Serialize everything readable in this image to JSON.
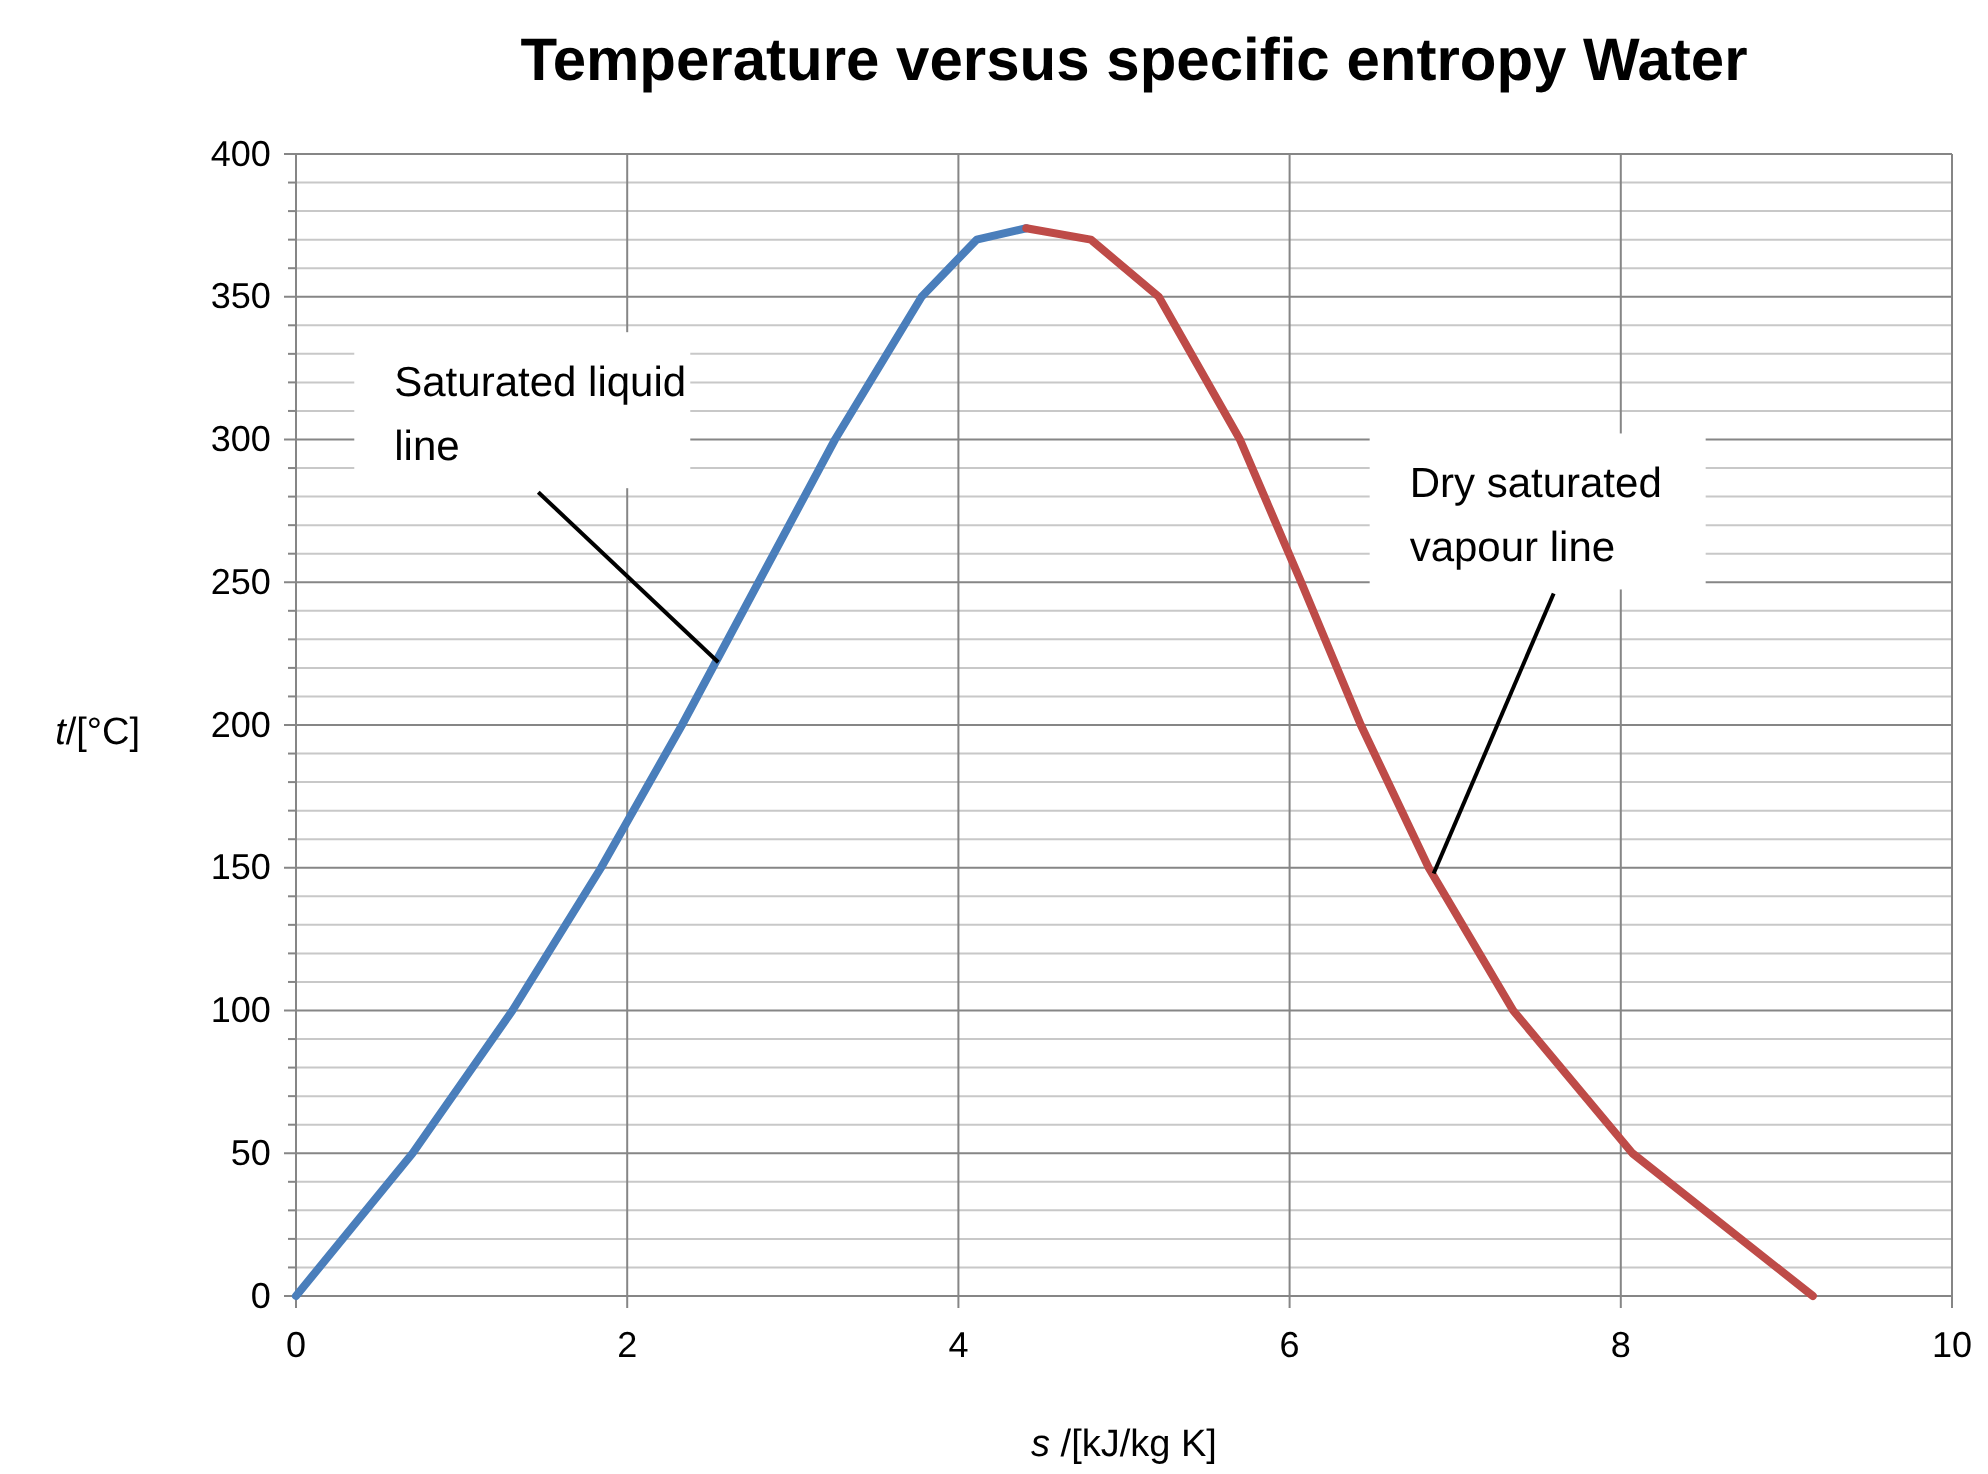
{
  "chart_data": {
    "type": "line",
    "title": "Temperature versus specific entropy Water",
    "xlabel": "s /[kJ/kg K]",
    "ylabel": "t/[°C]",
    "series": [
      {
        "color": "#4a7ebb",
        "x": [
          0,
          0.704,
          1.307,
          1.842,
          2.331,
          2.793,
          3.255,
          3.778,
          4.11,
          4.41
        ],
        "values": [
          0,
          50,
          100,
          150,
          200,
          250,
          300,
          350,
          370,
          374
        ]
      },
      {
        "color": "#be4b48",
        "x": [
          4.41,
          4.8,
          5.21,
          5.7,
          6.07,
          6.43,
          6.84,
          7.35,
          8.07,
          9.16
        ],
        "values": [
          374,
          370,
          350,
          300,
          250,
          200,
          150,
          100,
          50,
          0
        ]
      }
    ],
    "xlim": [
      0,
      10
    ],
    "xticks": [
      0,
      2,
      4,
      6,
      8,
      10
    ],
    "ylim": [
      0,
      400
    ],
    "yticks": [
      0,
      {
        "value": 10,
        "label": null
      },
      {
        "value": 20,
        "label": null
      },
      {
        "value": 30,
        "label": null
      },
      {
        "value": 40,
        "label": null
      },
      50,
      {
        "value": 60,
        "label": null
      },
      {
        "value": 70,
        "label": null
      },
      {
        "value": 80,
        "label": null
      },
      {
        "value": 90,
        "label": null
      },
      100,
      {
        "value": 110,
        "label": null
      },
      {
        "value": 120,
        "label": null
      },
      {
        "value": 130,
        "label": null
      },
      {
        "value": 140,
        "label": null
      },
      150,
      {
        "value": 160,
        "label": null
      },
      {
        "value": 170,
        "label": null
      },
      {
        "value": 180,
        "label": null
      },
      {
        "value": 190,
        "label": null
      },
      200,
      {
        "value": 210,
        "label": null
      },
      {
        "value": 220,
        "label": null
      },
      {
        "value": 230,
        "label": null
      },
      {
        "value": 240,
        "label": null
      },
      250,
      {
        "value": 260,
        "label": null
      },
      {
        "value": 270,
        "label": null
      },
      {
        "value": 280,
        "label": null
      },
      {
        "value": 290,
        "label": null
      },
      300,
      {
        "value": 310,
        "label": null
      },
      {
        "value": 320,
        "label": null
      },
      {
        "value": 330,
        "label": null
      },
      {
        "value": 340,
        "label": null
      },
      350,
      {
        "value": 360,
        "label": null
      },
      {
        "value": 370,
        "label": null
      },
      {
        "value": 380,
        "label": null
      },
      {
        "value": 390,
        "label": null
      },
      400
    ],
    "grid": true,
    "marker": "none",
    "line_style": "solid",
    "annotations": [
      {
        "text": "Saturated liquid line",
        "x": 2.55,
        "y": 222
      },
      {
        "text": "Dry saturated vapour line",
        "x": 6.87,
        "y": 148
      }
    ]
  }
}
